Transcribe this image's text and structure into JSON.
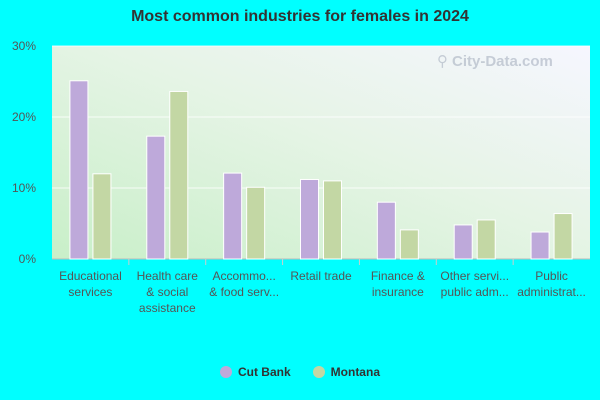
{
  "chart_data": {
    "type": "bar",
    "title": "Most common industries for females in 2024",
    "categories": [
      [
        "Educational",
        "services"
      ],
      [
        "Health care",
        "& social",
        "assistance"
      ],
      [
        "Accommo...",
        "& food serv..."
      ],
      [
        "Retail trade"
      ],
      [
        "Finance &",
        "insurance"
      ],
      [
        "Other servi...",
        "public adm..."
      ],
      [
        "Public",
        "administrat..."
      ]
    ],
    "series": [
      {
        "name": "Cut Bank",
        "color": "#BEA9DA",
        "values": [
          25.1,
          17.3,
          12.1,
          11.2,
          8.0,
          4.8,
          3.8
        ]
      },
      {
        "name": "Montana",
        "color": "#C3D7A4",
        "values": [
          12.0,
          23.6,
          10.1,
          11.0,
          4.1,
          5.5,
          6.4
        ]
      }
    ],
    "ylim": [
      0,
      30
    ],
    "yticks": [
      "0%",
      "10%",
      "20%",
      "30%"
    ],
    "grid": true,
    "legend_position": "bottom-center"
  },
  "watermark": "City-Data.com"
}
